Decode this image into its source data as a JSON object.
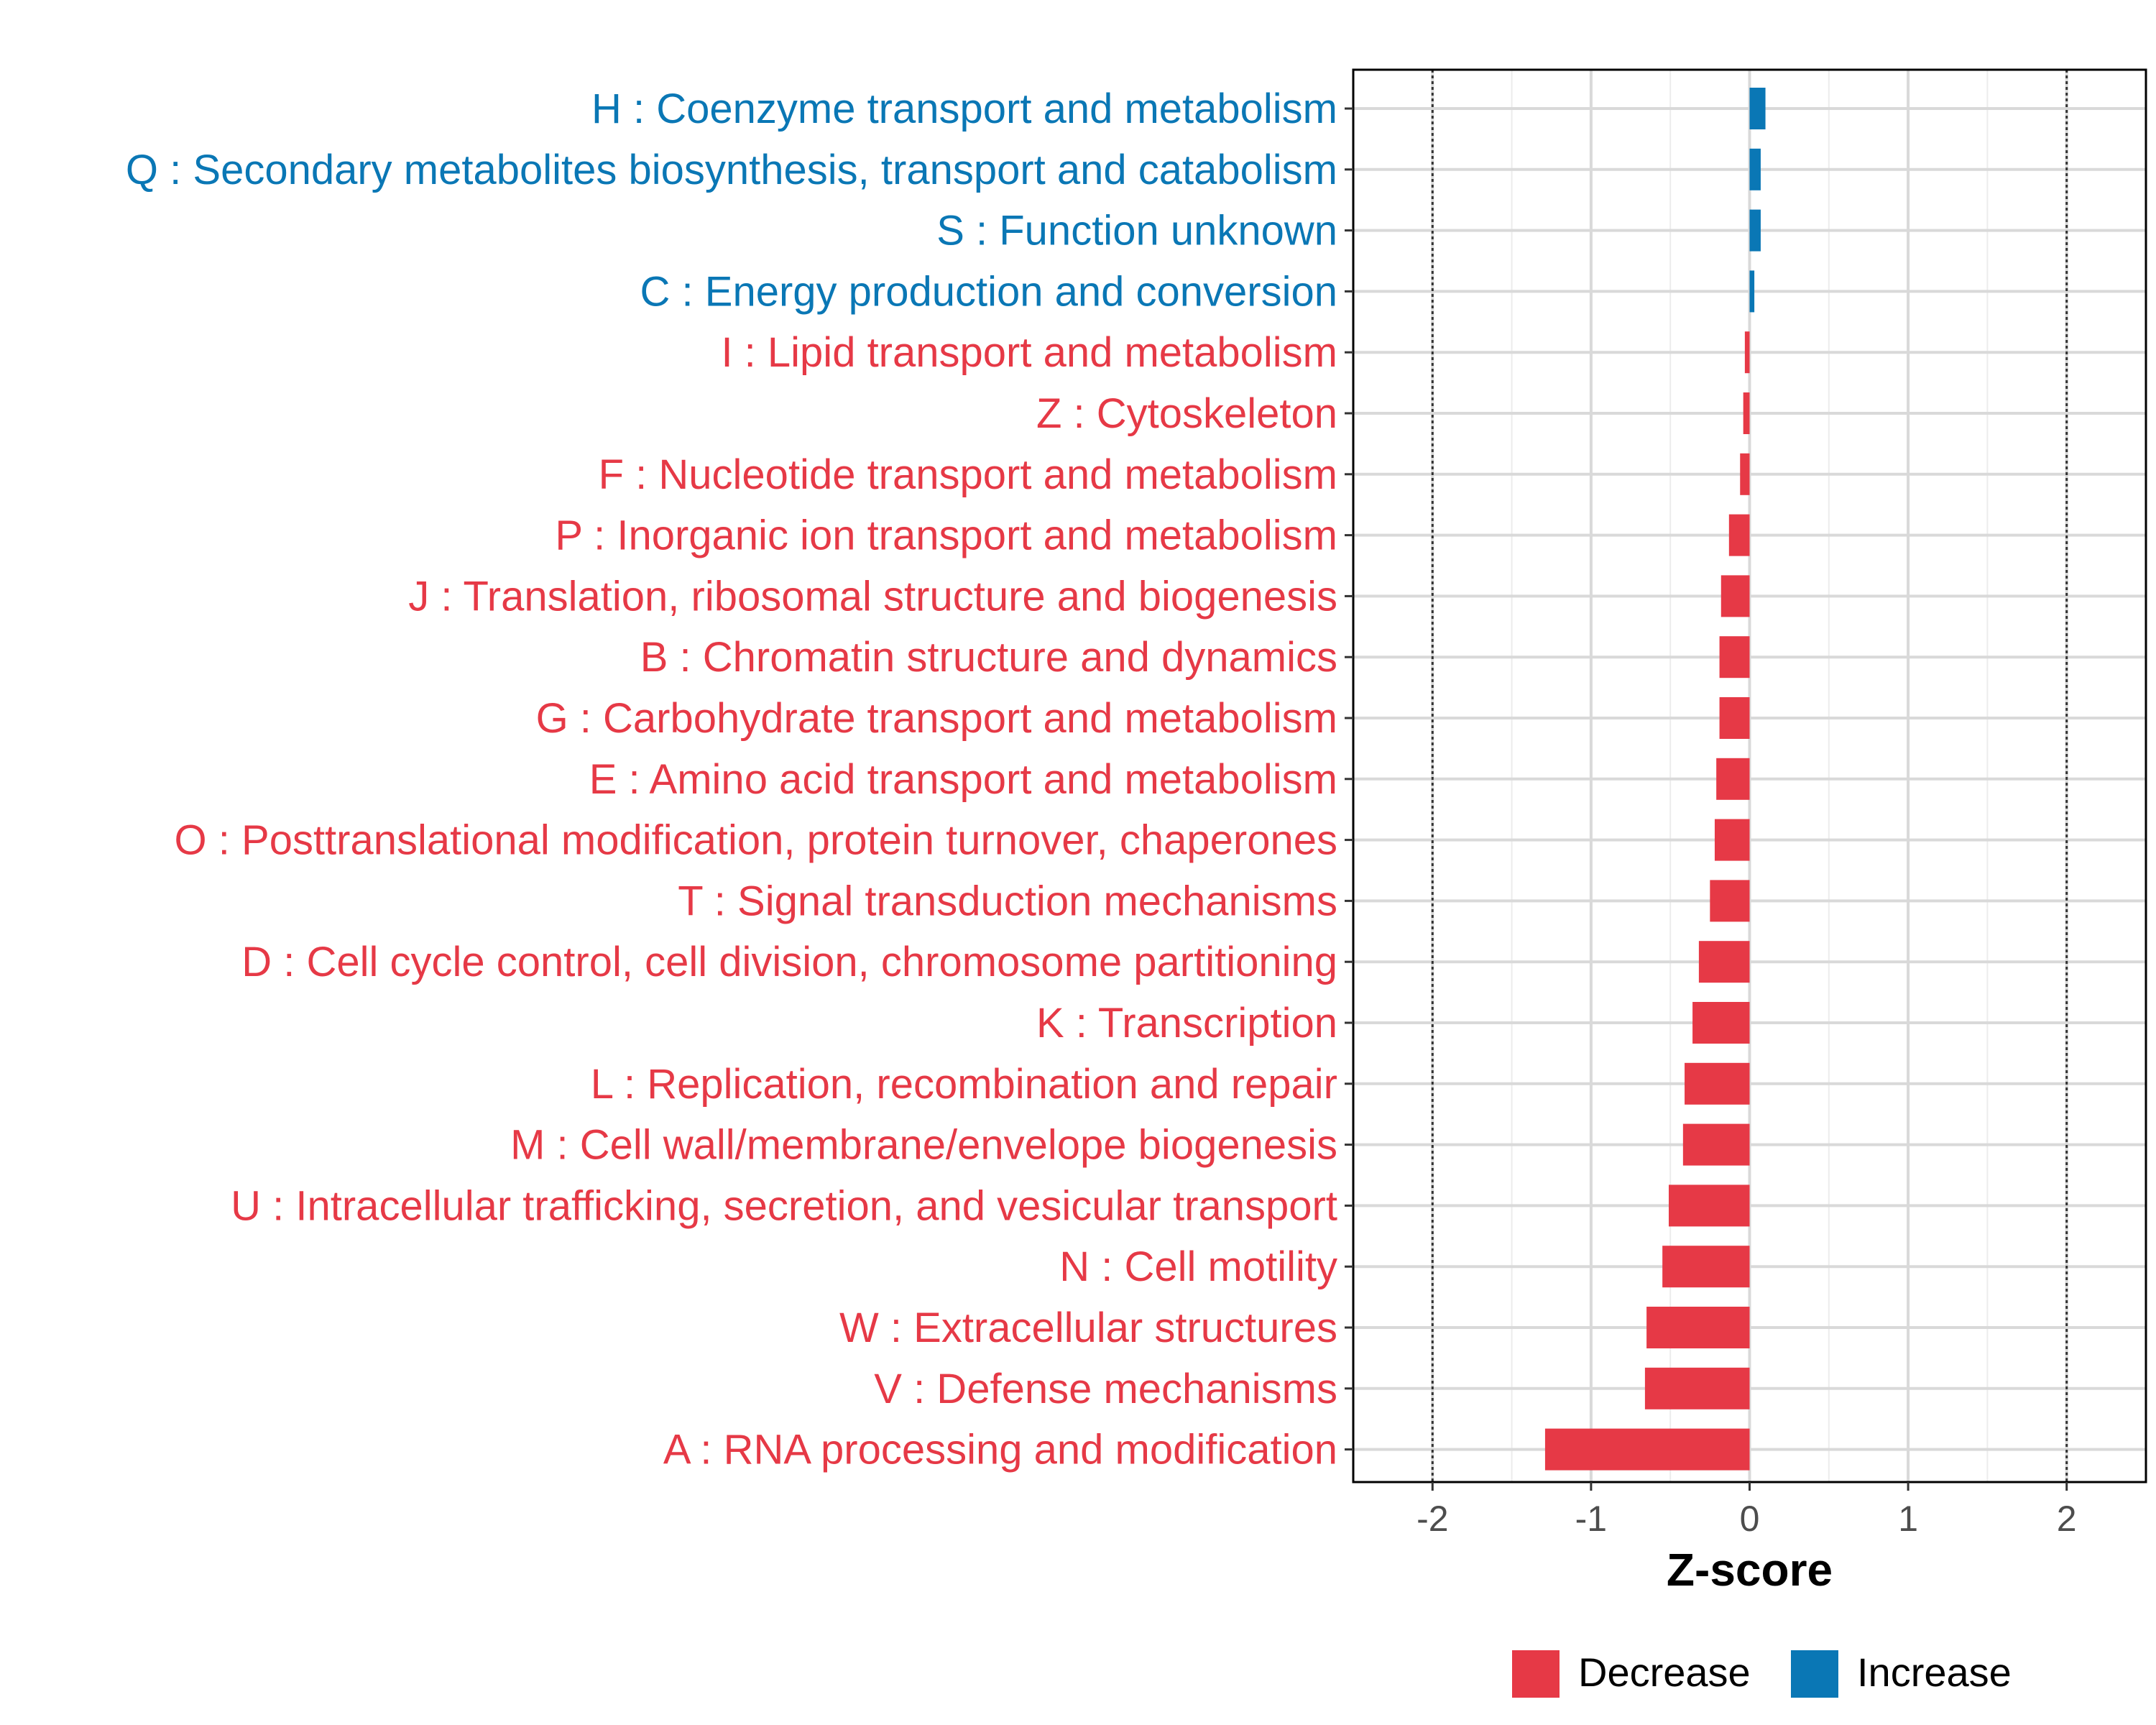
{
  "chart_data": {
    "type": "bar",
    "orientation": "horizontal",
    "xlabel": "Z-score",
    "xlim": [
      -2.5,
      2.5
    ],
    "xticks": [
      "-2",
      "-1",
      "0",
      "1",
      "2"
    ],
    "xtick_values": [
      -2,
      -1,
      0,
      1,
      2
    ],
    "reference_lines": [
      -2,
      2
    ],
    "grid": true,
    "categories": [
      "H : Coenzyme transport and metabolism",
      "Q : Secondary metabolites biosynthesis, transport and catabolism",
      "S : Function unknown",
      "C : Energy production and conversion",
      "I : Lipid transport and metabolism",
      "Z : Cytoskeleton",
      "F : Nucleotide transport and metabolism",
      "P : Inorganic ion transport and metabolism",
      "J : Translation, ribosomal structure and biogenesis",
      "B : Chromatin structure and dynamics",
      "G : Carbohydrate transport and metabolism",
      "E : Amino acid transport and metabolism",
      "O : Posttranslational modification, protein turnover, chaperones",
      "T : Signal transduction mechanisms",
      "D : Cell cycle control, cell division, chromosome partitioning",
      "K : Transcription",
      "L : Replication, recombination and repair",
      "M : Cell wall/membrane/envelope biogenesis",
      "U : Intracellular trafficking, secretion, and vesicular transport",
      "N : Cell motility",
      "W : Extracellular structures",
      "V : Defense mechanisms",
      "A : RNA processing and modification"
    ],
    "values": [
      0.1,
      0.07,
      0.07,
      0.03,
      -0.03,
      -0.04,
      -0.06,
      -0.13,
      -0.18,
      -0.19,
      -0.19,
      -0.21,
      -0.22,
      -0.25,
      -0.32,
      -0.36,
      -0.41,
      -0.42,
      -0.51,
      -0.55,
      -0.65,
      -0.66,
      -1.29
    ],
    "groups": [
      "Increase",
      "Increase",
      "Increase",
      "Increase",
      "Decrease",
      "Decrease",
      "Decrease",
      "Decrease",
      "Decrease",
      "Decrease",
      "Decrease",
      "Decrease",
      "Decrease",
      "Decrease",
      "Decrease",
      "Decrease",
      "Decrease",
      "Decrease",
      "Decrease",
      "Decrease",
      "Decrease",
      "Decrease",
      "Decrease"
    ],
    "legend": {
      "position": "bottom",
      "entries": [
        {
          "label": "Decrease",
          "color": "#e63946"
        },
        {
          "label": "Increase",
          "color": "#0a77b5"
        }
      ]
    },
    "colors": {
      "Decrease": "#e63946",
      "Increase": "#0a77b5"
    }
  }
}
